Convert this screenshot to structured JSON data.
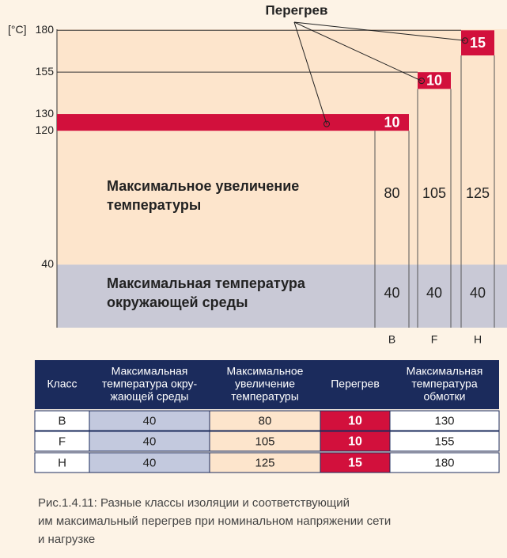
{
  "diagram": {
    "title": "Перегрев",
    "unit": "[°C]",
    "ticks": [
      180,
      155,
      130,
      120,
      40
    ],
    "rise_label": [
      "Максимальное увеличение",
      "температуры"
    ],
    "ambient_label": [
      "Максимальная температура",
      "окружающей среды"
    ],
    "classes": [
      {
        "name": "B",
        "ambient": 40,
        "rise": 80,
        "overheat": 10
      },
      {
        "name": "F",
        "ambient": 40,
        "rise": 105,
        "overheat": 10
      },
      {
        "name": "H",
        "ambient": 40,
        "rise": 125,
        "overheat": 15
      }
    ]
  },
  "table": {
    "header": [
      [
        "Класс"
      ],
      [
        "Максимальная",
        "температура окру-",
        "жающей среды"
      ],
      [
        "Максимальное",
        "увеличение",
        "температуры"
      ],
      [
        "Перегрев"
      ],
      [
        "Максимальная",
        "температура",
        "обмотки"
      ]
    ],
    "rows": [
      [
        "B",
        40,
        80,
        10,
        130
      ],
      [
        "F",
        40,
        105,
        10,
        155
      ],
      [
        "H",
        40,
        125,
        15,
        180
      ]
    ]
  },
  "caption": [
    "Рис.1.4.11: Разные классы изоляции и соответствующий",
    "им максимальный перегрев при номинальном напряжении сети",
    "и нагрузке"
  ]
}
